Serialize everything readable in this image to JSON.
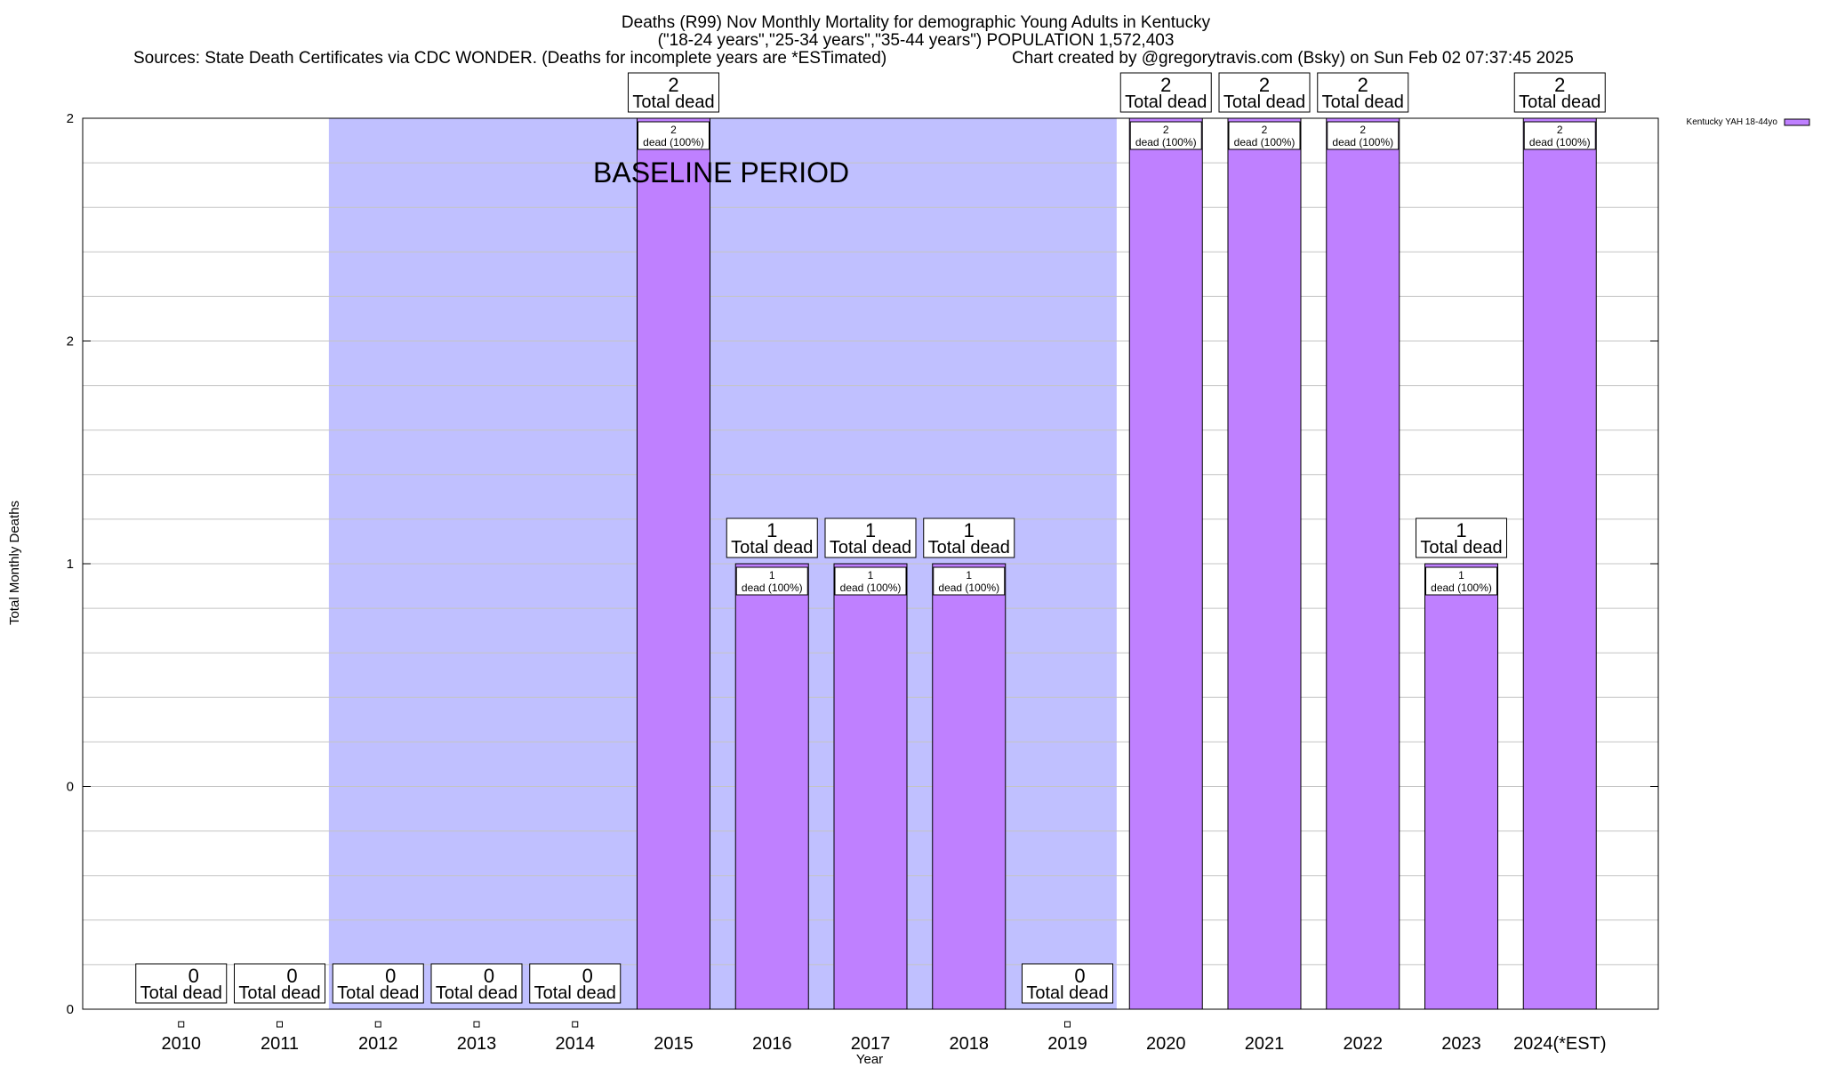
{
  "chart_data": {
    "type": "bar",
    "title_lines": [
      "Deaths (R99) Nov Monthly Mortality for demographic Young Adults in Kentucky",
      "(\"18-24 years\",\"25-34 years\",\"35-44 years\") POPULATION 1,572,403"
    ],
    "sources": "Sources: State Death Certificates via CDC WONDER. (Deaths for incomplete years are *ESTimated)",
    "credit": "Chart created by @gregorytravis.com (Bsky) on Sun Feb 02 07:37:45 2025",
    "xlabel": "Year",
    "ylabel": "Total Monthly Deaths",
    "ylim": [
      0,
      2
    ],
    "ytick_values": [
      0,
      0.5,
      1,
      1.5,
      2
    ],
    "ytick_labels": [
      "0",
      "0",
      "1",
      "2",
      "2"
    ],
    "categories": [
      "2010",
      "2011",
      "2012",
      "2013",
      "2014",
      "2015",
      "2016",
      "2017",
      "2018",
      "2019",
      "2020",
      "2021",
      "2022",
      "2023",
      "2024(*EST)"
    ],
    "series": [
      {
        "name": "Kentucky YAH 18-44yo",
        "color": "#bf80ff",
        "values": [
          0,
          0,
          0,
          0,
          0,
          2,
          1,
          1,
          1,
          0,
          2,
          2,
          2,
          1,
          2
        ]
      }
    ],
    "total_label_text": "Total dead",
    "inner_label_text": "dead (100%)",
    "baseline": {
      "label": "BASELINE PERIOD",
      "start_category": "2012",
      "end_category": "2019",
      "color": "#c0c0ff"
    }
  }
}
